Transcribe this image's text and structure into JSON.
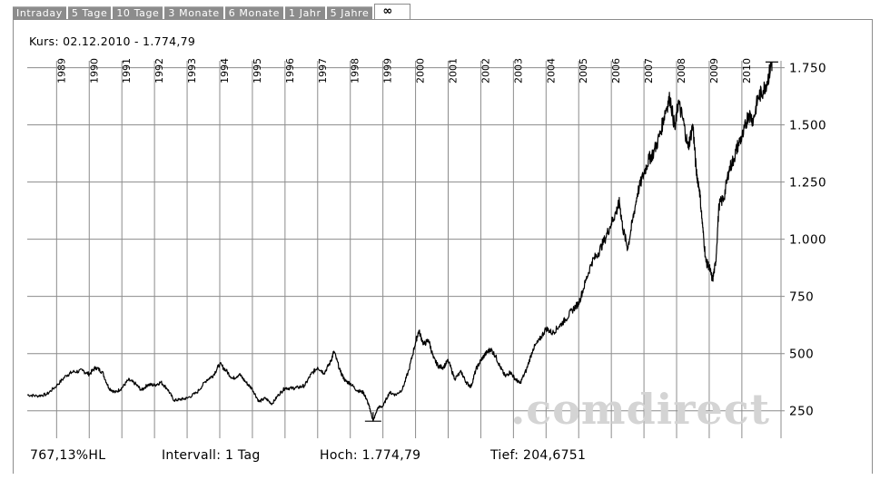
{
  "tabs": [
    "Intraday",
    "5 Tage",
    "10 Tage",
    "3 Monate",
    "6 Monate",
    "1 Jahr",
    "5 Jahre",
    "∞"
  ],
  "active_tab": "∞",
  "kurs_label": "Kurs: 02.12.2010 - 1.774,79",
  "footer": {
    "hl": "767,13%HL",
    "intervall": "Intervall: 1 Tag",
    "hoch": "Hoch:  1.774,79",
    "tief": "Tief: 204,6751"
  },
  "watermark": ".comdirect",
  "colors": {
    "line": "#000000",
    "grid": "#8c8c8c",
    "tab_bg": "#8c8c8c",
    "watermark": "#d4d4d4"
  },
  "chart_data": {
    "type": "line",
    "title": "",
    "xlabel": "",
    "ylabel": "",
    "x_tick_labels": [
      "1989",
      "1990",
      "1991",
      "1992",
      "1993",
      "1994",
      "1995",
      "1996",
      "1997",
      "1998",
      "1999",
      "2000",
      "2001",
      "2002",
      "2003",
      "2004",
      "2005",
      "2006",
      "2007",
      "2008",
      "2009",
      "2010"
    ],
    "y_tick_labels": [
      "1.750",
      "1.500",
      "1.250",
      "1.000",
      "750",
      "500",
      "250"
    ],
    "y_ticks": [
      1750,
      1500,
      1250,
      1000,
      750,
      500,
      250
    ],
    "ylim": [
      130,
      1780
    ],
    "xlim": [
      1988.1,
      2011.2
    ],
    "grid": true,
    "y_axis_side": "right",
    "high": {
      "x": 2010.92,
      "y": 1774.79
    },
    "low": {
      "x": 1998.7,
      "y": 204.68
    },
    "series": [
      {
        "x": [
          1988.1,
          1988.4,
          1988.7,
          1989.0,
          1989.3,
          1989.5,
          1989.8,
          1990.0,
          1990.2,
          1990.4,
          1990.6,
          1990.8,
          1991.0,
          1991.2,
          1991.4,
          1991.6,
          1991.8,
          1992.0,
          1992.2,
          1992.4,
          1992.6,
          1992.8,
          1993.0,
          1993.3,
          1993.6,
          1993.8,
          1994.0,
          1994.2,
          1994.4,
          1994.6,
          1994.8,
          1995.0,
          1995.2,
          1995.4,
          1995.6,
          1995.8,
          1996.0,
          1996.2,
          1996.4,
          1996.6,
          1996.8,
          1997.0,
          1997.2,
          1997.4,
          1997.5,
          1997.7,
          1997.85,
          1998.0,
          1998.2,
          1998.4,
          1998.5,
          1998.6,
          1998.7,
          1998.85,
          1999.0,
          1999.2,
          1999.4,
          1999.6,
          1999.8,
          2000.0,
          2000.1,
          2000.25,
          2000.4,
          2000.55,
          2000.7,
          2000.85,
          2001.0,
          2001.2,
          2001.4,
          2001.55,
          2001.7,
          2001.85,
          2002.0,
          2002.15,
          2002.3,
          2002.45,
          2002.6,
          2002.75,
          2002.9,
          2003.05,
          2003.2,
          2003.4,
          2003.6,
          2003.8,
          2004.0,
          2004.2,
          2004.4,
          2004.6,
          2004.8,
          2005.0,
          2005.2,
          2005.4,
          2005.6,
          2005.8,
          2006.0,
          2006.15,
          2006.25,
          2006.35,
          2006.5,
          2006.65,
          2006.8,
          2007.0,
          2007.15,
          2007.3,
          2007.5,
          2007.65,
          2007.8,
          2007.95,
          2008.05,
          2008.2,
          2008.35,
          2008.5,
          2008.6,
          2008.7,
          2008.8,
          2008.9,
          2009.0,
          2009.1,
          2009.2,
          2009.3,
          2009.45,
          2009.6,
          2009.75,
          2009.9,
          2010.05,
          2010.2,
          2010.35,
          2010.5,
          2010.65,
          2010.8,
          2010.92
        ],
        "values": [
          320,
          315,
          322,
          360,
          405,
          420,
          425,
          410,
          440,
          420,
          350,
          330,
          350,
          385,
          370,
          340,
          365,
          362,
          375,
          345,
          295,
          300,
          305,
          330,
          385,
          405,
          455,
          425,
          390,
          410,
          375,
          345,
          290,
          305,
          280,
          320,
          350,
          348,
          352,
          360,
          410,
          440,
          415,
          465,
          510,
          420,
          380,
          370,
          340,
          330,
          300,
          260,
          205,
          265,
          270,
          330,
          320,
          345,
          430,
          550,
          600,
          540,
          560,
          480,
          445,
          440,
          470,
          390,
          420,
          375,
          355,
          430,
          470,
          500,
          520,
          490,
          440,
          400,
          420,
          390,
          370,
          430,
          520,
          560,
          610,
          590,
          620,
          650,
          690,
          720,
          810,
          900,
          940,
          1000,
          1070,
          1120,
          1160,
          1050,
          960,
          1080,
          1200,
          1290,
          1350,
          1380,
          1460,
          1560,
          1620,
          1480,
          1600,
          1520,
          1400,
          1500,
          1300,
          1220,
          1050,
          900,
          880,
          820,
          900,
          1150,
          1180,
          1300,
          1350,
          1420,
          1460,
          1550,
          1520,
          1620,
          1650,
          1700,
          1774.79
        ]
      }
    ]
  }
}
